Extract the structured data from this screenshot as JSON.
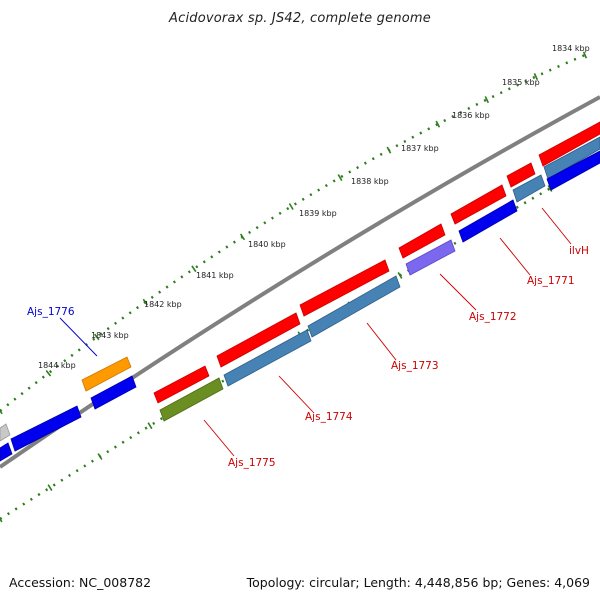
{
  "title": "Acidovorax sp. JS42, complete genome",
  "footer": {
    "accession": "Accession: NC_008782",
    "topology": "Topology: circular; Length: 4,448,856 bp; Genes: 4,069"
  },
  "colors": {
    "backbone": "#808080",
    "tick": "#2e7d1e",
    "red_gene": "#ff0000",
    "blue_gene": "#0000ee",
    "steel_gene": "#4682b4",
    "orange_gene": "#ff9900",
    "olive_gene": "#6b8e23",
    "purple_gene": "#7b68ee",
    "gray_gene": "#c8c8c8",
    "red_label": "#cc0000",
    "blue_label": "#0000cc"
  },
  "kbp_labels": [
    "1834 kbp",
    "1835 kbp",
    "1836 kbp",
    "1837 kbp",
    "1838 kbp",
    "1839 kbp",
    "1840 kbp",
    "1841 kbp",
    "1842 kbp",
    "1843 kbp",
    "1844 kbp"
  ],
  "gene_labels": {
    "ajs_1776": "Ajs_1776",
    "ajs_1775": "Ajs_1775",
    "ajs_1774": "Ajs_1774",
    "ajs_1773": "Ajs_1773",
    "ajs_1772": "Ajs_1772",
    "ajs_1771": "Ajs_1771",
    "ilvh": "ilvH"
  }
}
